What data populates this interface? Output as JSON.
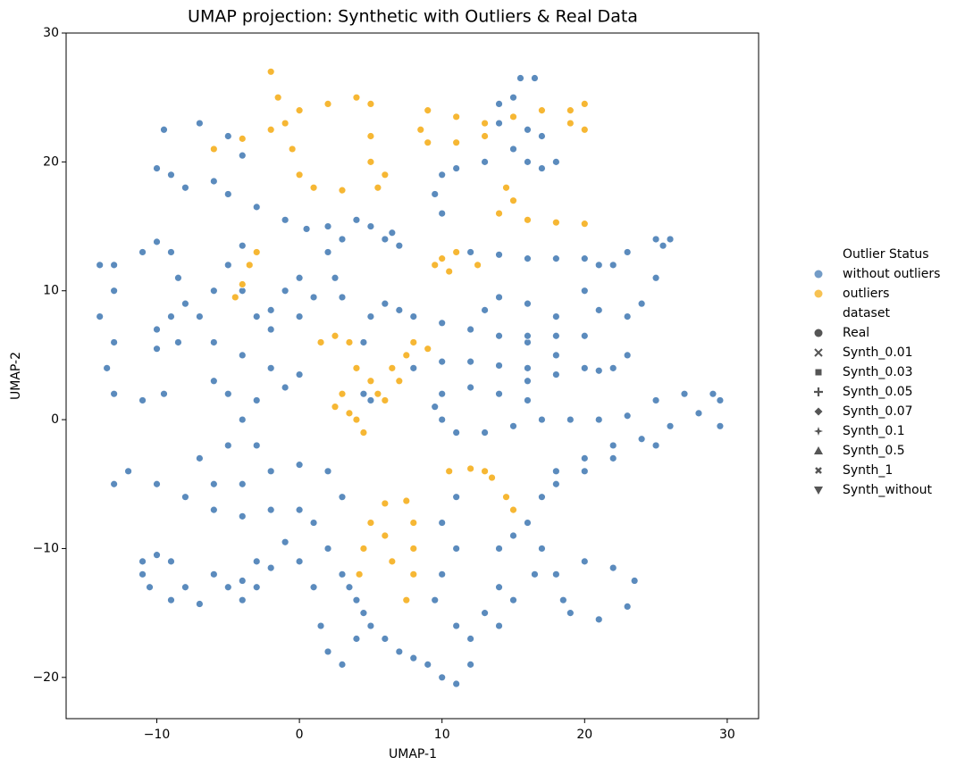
{
  "chart_data": {
    "type": "scatter",
    "title": "UMAP projection: Synthetic with Outliers & Real Data",
    "xlabel": "UMAP-1",
    "ylabel": "UMAP-2",
    "xlim": [
      -16.36,
      32.2
    ],
    "ylim": [
      -23.2,
      30
    ],
    "xticks": [
      {
        "value": -10,
        "label": "−10"
      },
      0,
      10,
      20,
      30
    ],
    "yticks": [
      {
        "value": -20,
        "label": "−20"
      },
      {
        "value": -10,
        "label": "−10"
      },
      0,
      10,
      20,
      30
    ],
    "legend": {
      "title": "Outlier Status",
      "style_title": "dataset",
      "styles": [
        "Real",
        "Synth_0.01",
        "Synth_0.03",
        "Synth_0.05",
        "Synth_0.07",
        "Synth_0.1",
        "Synth_0.5",
        "Synth_1",
        "Synth_without"
      ],
      "style_markers": [
        "circle",
        "x",
        "square",
        "plus",
        "diamond",
        "star",
        "triangle-up",
        "small-x",
        "triangle-down"
      ]
    },
    "series": [
      {
        "name": "without outliers",
        "color": "#5b8bbd",
        "x": [
          -10,
          -9.5,
          -7,
          -5,
          -4,
          -9,
          -8,
          -6,
          -5,
          -3,
          -1,
          0.5,
          -14,
          -13,
          -14,
          -13,
          -13.5,
          -13,
          -11,
          -9.5,
          -13,
          -11,
          -10,
          -9,
          -8.5,
          -8,
          -9,
          -10,
          -10,
          -8.5,
          -7,
          -6,
          -5,
          -4,
          -3.5,
          -4,
          -3,
          -2,
          0,
          1,
          0,
          -1,
          -2,
          -6,
          -4,
          -2,
          0,
          -1,
          -3,
          -5,
          -6,
          -4,
          -3,
          -5,
          -7,
          -6,
          -4,
          -2,
          0,
          2,
          3,
          -13,
          -12,
          -10,
          -8,
          -6,
          -4,
          -2,
          0,
          1,
          2,
          3,
          4,
          5,
          6,
          7,
          8,
          9,
          10,
          11,
          12,
          -11,
          -10,
          -9,
          -8,
          -7,
          -9,
          -10.5,
          -11,
          -6,
          -5,
          -4,
          -3,
          -2,
          -3,
          -4,
          -1,
          0,
          1,
          1.5,
          2,
          3,
          4,
          4.5,
          3.5,
          10,
          11,
          10.5,
          11,
          10,
          9.5,
          11,
          12,
          13,
          14,
          14,
          15,
          16,
          17,
          16.5,
          15,
          14,
          18,
          20,
          22,
          23.5,
          23,
          21,
          19,
          18.5,
          17,
          18,
          20,
          22,
          24,
          26,
          28,
          29.5,
          29.5,
          25,
          22,
          20,
          18,
          10,
          11,
          13,
          15,
          17,
          19,
          21,
          23,
          25,
          27,
          29,
          16,
          14,
          12,
          10,
          9.5,
          16,
          18,
          20,
          22,
          23,
          21,
          18,
          16,
          14,
          12,
          10,
          8,
          7,
          6,
          5,
          4.5,
          4,
          4.5,
          5,
          8,
          10,
          12,
          14,
          16,
          13,
          14,
          16,
          18,
          20,
          18,
          16,
          22,
          20,
          18,
          16,
          14,
          12,
          25,
          23,
          21,
          20,
          21,
          23,
          24,
          25,
          25.5,
          26,
          10,
          9.5,
          10,
          11,
          13,
          15,
          16,
          15,
          14,
          14,
          15,
          15.5,
          16.5,
          17,
          18,
          17,
          16,
          2,
          3,
          4,
          5,
          6,
          7,
          6.5,
          2,
          2.5,
          3
        ],
        "values": [
          19.5,
          22.5,
          23,
          22,
          20.5,
          19,
          18,
          18.5,
          17.5,
          16.5,
          15.5,
          14.8,
          12,
          10,
          8,
          6,
          4,
          2,
          1.5,
          2,
          12,
          13,
          13.8,
          13,
          11,
          9,
          8,
          7,
          5.5,
          6,
          8,
          10,
          12,
          13.5,
          12,
          10,
          8,
          7,
          8,
          9.5,
          11,
          10,
          8.5,
          6,
          5,
          4,
          3.5,
          2.5,
          1.5,
          2,
          3,
          0,
          -2,
          -2,
          -3,
          -5,
          -5,
          -4,
          -3.5,
          -4,
          -6,
          -5,
          -4,
          -5,
          -6,
          -7,
          -7.5,
          -7,
          -7,
          -8,
          -10,
          -12,
          -14,
          -16,
          -17,
          -18,
          -18.5,
          -19,
          -20,
          -20.5,
          -19,
          -11,
          -10.5,
          -11,
          -13,
          -14.3,
          -14,
          -13,
          -12,
          -12,
          -13,
          -14,
          -13,
          -11.5,
          -11,
          -12.5,
          -9.5,
          -11,
          -13,
          -16,
          -18,
          -19,
          -17,
          -15,
          -13,
          -8,
          -6,
          -4,
          -10,
          -12,
          -14,
          -16,
          -17,
          -15,
          -13,
          -10,
          -9,
          -8,
          -10,
          -12,
          -14,
          -16,
          -12,
          -11,
          -11.5,
          -12.5,
          -14.5,
          -15.5,
          -15,
          -14,
          -6,
          -4,
          -3,
          -2,
          -1.5,
          -0.5,
          0.5,
          1.5,
          -0.5,
          -2,
          -3,
          -4,
          -5,
          0,
          -1,
          -1,
          -0.5,
          0,
          0,
          0,
          0.3,
          1.5,
          2,
          2,
          1.5,
          2,
          2.5,
          2,
          1,
          3,
          3.5,
          4,
          4,
          5,
          3.8,
          5,
          6,
          6.5,
          7,
          7.5,
          8,
          8.5,
          9,
          8,
          6,
          4,
          2,
          1.5,
          4,
          4.5,
          4.5,
          4.2,
          4,
          8.5,
          9.5,
          9,
          8,
          6.5,
          6.5,
          6.5,
          12,
          12.5,
          12.5,
          12.5,
          12.8,
          13,
          14,
          13,
          12,
          10,
          8.5,
          8,
          9,
          11,
          13.5,
          14,
          16,
          17.5,
          19,
          19.5,
          20,
          21,
          22.5,
          23.5,
          24.5,
          23,
          25,
          26.5,
          26.5,
          22,
          20,
          19.5,
          20,
          15,
          14,
          15.5,
          15,
          14,
          13.5,
          14.5,
          13,
          11,
          9.5
        ]
      },
      {
        "name": "outliers",
        "color": "#f6b734",
        "x": [
          -2,
          -1.5,
          -1,
          -2,
          -4,
          -6,
          0,
          2,
          4,
          5,
          5,
          5,
          6,
          5.5,
          3,
          1,
          0,
          -0.5,
          9,
          11,
          13,
          15,
          17,
          19,
          20,
          20,
          19,
          9,
          11,
          13,
          8.5,
          14.5,
          15,
          14,
          16,
          18,
          20,
          10,
          11,
          12.5,
          10.5,
          9.5,
          -3.5,
          -4,
          -4.5,
          -3,
          1.5,
          2.5,
          3.5,
          4,
          3,
          2.5,
          4,
          4.5,
          3.5,
          5,
          5.5,
          6,
          7,
          7.5,
          8,
          9,
          6.5,
          10.5,
          12,
          13.5,
          14.5,
          15,
          13,
          6,
          7.5,
          8,
          8,
          8,
          7.5,
          6.5,
          6,
          5,
          4.5,
          4.2
        ],
        "values": [
          27,
          25,
          23,
          22.5,
          21.8,
          21,
          24,
          24.5,
          25,
          24.5,
          22,
          20,
          19,
          18,
          17.8,
          18,
          19,
          21,
          24,
          23.5,
          23,
          23.5,
          24,
          24,
          24.5,
          22.5,
          23,
          21.5,
          21.5,
          22,
          22.5,
          18,
          17,
          16,
          15.5,
          15.3,
          15.2,
          12.5,
          13,
          12,
          11.5,
          12,
          12,
          10.5,
          9.5,
          13,
          6,
          6.5,
          6,
          4,
          2,
          1,
          0,
          -1,
          0.5,
          3,
          2,
          1.5,
          3,
          5,
          6,
          5.5,
          4,
          -4,
          -3.8,
          -4.5,
          -6,
          -7,
          -4,
          -6.5,
          -6.3,
          -8,
          -10,
          -12,
          -14,
          -11,
          -9,
          -8,
          -10,
          -12
        ]
      }
    ]
  }
}
